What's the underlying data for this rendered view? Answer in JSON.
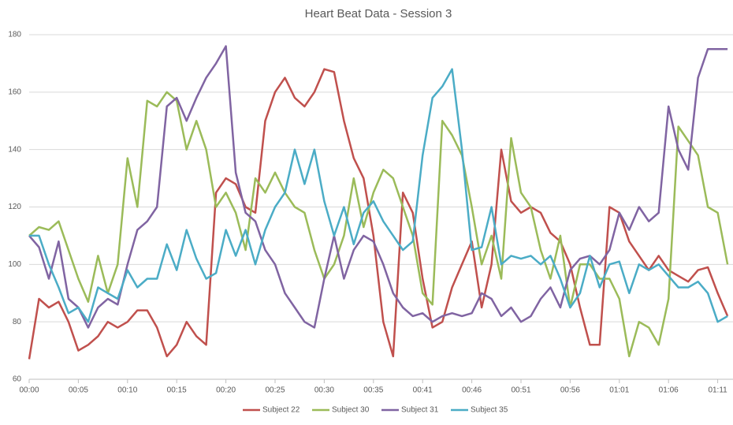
{
  "chart_data": {
    "type": "line",
    "title": "Heart Beat Data - Session 3",
    "categories": [
      "00:00",
      null,
      null,
      null,
      null,
      "00:05",
      null,
      null,
      null,
      null,
      "00:10",
      null,
      null,
      null,
      null,
      "00:15",
      null,
      null,
      null,
      null,
      "00:20",
      null,
      null,
      null,
      null,
      "00:25",
      null,
      null,
      null,
      null,
      "00:30",
      null,
      null,
      null,
      null,
      "00:35",
      null,
      null,
      null,
      null,
      "00:41",
      null,
      null,
      null,
      null,
      "00:46",
      null,
      null,
      null,
      null,
      "00:51",
      null,
      null,
      null,
      null,
      "00:56",
      null,
      null,
      null,
      null,
      "01:01",
      null,
      null,
      null,
      null,
      "01:06",
      null,
      null,
      null,
      null,
      "01:11",
      null
    ],
    "series": [
      {
        "name": "Subject 22",
        "color": "#c0504d",
        "values": [
          67,
          88,
          85,
          87,
          80,
          70,
          72,
          75,
          80,
          78,
          80,
          84,
          84,
          78,
          68,
          72,
          80,
          75,
          72,
          125,
          130,
          128,
          120,
          118,
          150,
          160,
          165,
          158,
          155,
          160,
          168,
          167,
          150,
          137,
          130,
          110,
          80,
          68,
          125,
          118,
          95,
          78,
          80,
          92,
          100,
          108,
          85,
          100,
          140,
          122,
          118,
          120,
          118,
          111,
          108,
          100,
          85,
          72,
          72,
          120,
          118,
          108,
          103,
          98,
          103,
          98,
          96,
          94,
          98,
          99,
          90,
          82
        ]
      },
      {
        "name": "Subject 30",
        "color": "#9bbb59",
        "values": [
          110,
          113,
          112,
          115,
          105,
          95,
          87,
          103,
          90,
          100,
          137,
          120,
          157,
          155,
          160,
          157,
          140,
          150,
          140,
          120,
          125,
          118,
          105,
          130,
          125,
          132,
          125,
          120,
          118,
          105,
          95,
          100,
          110,
          130,
          113,
          125,
          133,
          130,
          120,
          110,
          90,
          86,
          150,
          145,
          138,
          120,
          100,
          110,
          95,
          144,
          125,
          120,
          105,
          95,
          110,
          85,
          100,
          100,
          95,
          95,
          88,
          68,
          80,
          78,
          72,
          88,
          148,
          143,
          138,
          120,
          118,
          100
        ]
      },
      {
        "name": "Subject 31",
        "color": "#8064a2",
        "values": [
          110,
          106,
          95,
          108,
          88,
          85,
          78,
          85,
          88,
          86,
          100,
          112,
          115,
          120,
          155,
          158,
          150,
          158,
          165,
          170,
          176,
          132,
          118,
          115,
          105,
          100,
          90,
          85,
          80,
          78,
          95,
          110,
          95,
          105,
          110,
          108,
          100,
          90,
          85,
          82,
          83,
          80,
          82,
          83,
          82,
          83,
          90,
          88,
          82,
          85,
          80,
          82,
          88,
          92,
          85,
          98,
          102,
          103,
          100,
          105,
          118,
          112,
          120,
          115,
          118,
          155,
          140,
          133,
          165,
          175,
          175,
          175
        ]
      },
      {
        "name": "Subject 35",
        "color": "#4bacc6",
        "values": [
          110,
          110,
          100,
          92,
          83,
          85,
          80,
          92,
          90,
          88,
          98,
          92,
          95,
          95,
          107,
          98,
          112,
          102,
          95,
          97,
          112,
          103,
          112,
          100,
          112,
          120,
          125,
          140,
          128,
          140,
          122,
          110,
          120,
          107,
          118,
          122,
          115,
          110,
          105,
          108,
          138,
          158,
          162,
          168,
          140,
          105,
          106,
          120,
          100,
          103,
          102,
          103,
          100,
          103,
          95,
          85,
          90,
          103,
          92,
          100,
          101,
          90,
          100,
          98,
          100,
          96,
          92,
          92,
          94,
          90,
          80,
          82
        ]
      }
    ],
    "ylim": [
      60,
      180
    ],
    "yticks": [
      60,
      80,
      100,
      120,
      140,
      160,
      180
    ],
    "grid": true,
    "legend": "bottom"
  }
}
